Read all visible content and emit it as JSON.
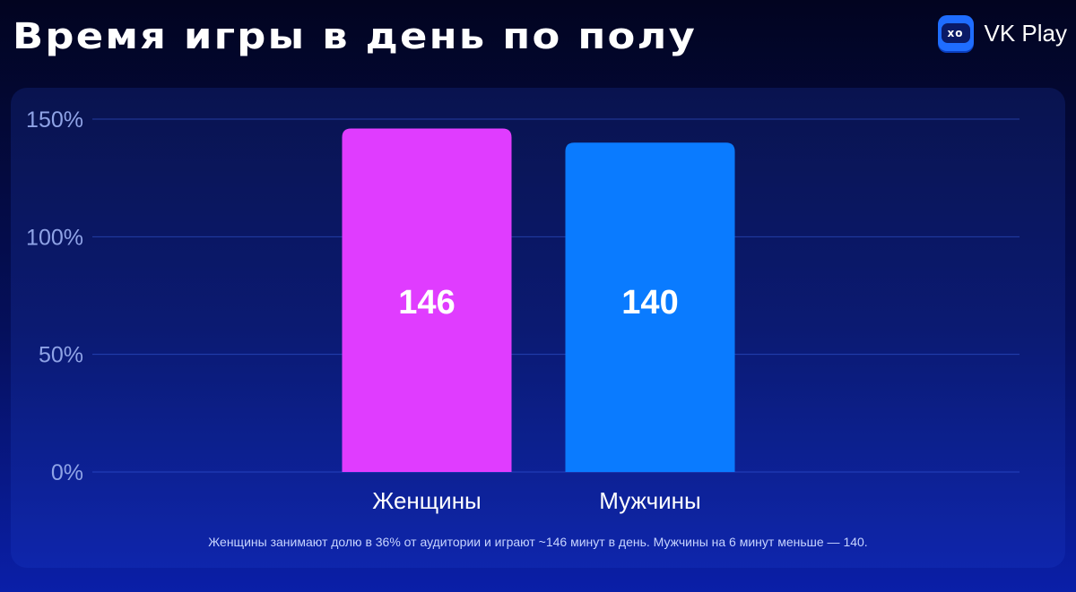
{
  "header": {
    "title": "Время игры в день по полу",
    "brand_name": "VK Play",
    "brand_logo_text": "xo"
  },
  "chart_data": {
    "type": "bar",
    "categories": [
      "Женщины",
      "Мужчины"
    ],
    "values": [
      146,
      140
    ],
    "value_labels": [
      "146",
      "140"
    ],
    "bar_colors": [
      "#e03cff",
      "#0a7bff"
    ],
    "ylim": [
      0,
      150
    ],
    "yticks": [
      0,
      50,
      100,
      150
    ],
    "ytick_labels": [
      "0%",
      "50%",
      "100%",
      "150%"
    ],
    "grid": true,
    "note": "Женщины занимают долю в 36% от аудитории и играют ~146 минут в день. Мужчины на 6 минут меньше — 140."
  }
}
